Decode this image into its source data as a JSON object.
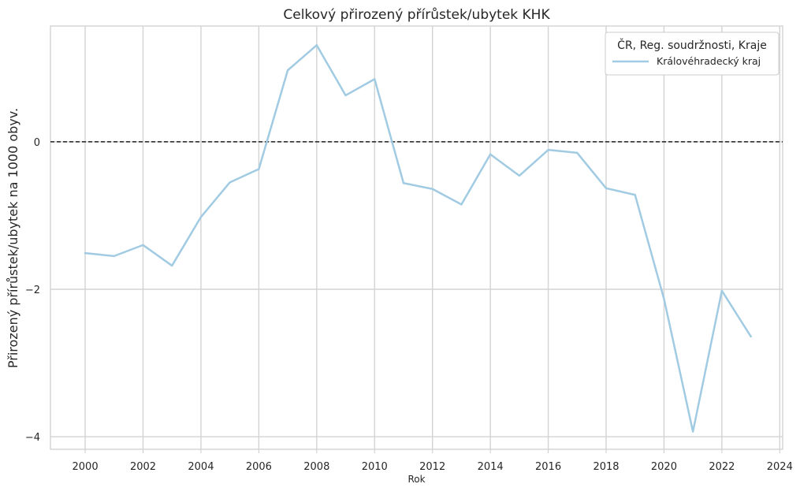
{
  "chart_data": {
    "type": "line",
    "title": "Celkový přirozený přírůstek/ubytek KHK",
    "xlabel": "Rok",
    "ylabel": "Přirozený přírůstek/ubytek na 1000 obyv.",
    "x": [
      2000,
      2001,
      2002,
      2003,
      2004,
      2005,
      2006,
      2007,
      2008,
      2009,
      2010,
      2011,
      2012,
      2013,
      2014,
      2015,
      2016,
      2017,
      2018,
      2019,
      2020,
      2021,
      2022,
      2023
    ],
    "series": [
      {
        "name": "Královéhradecký kraj",
        "color": "#a1cbe2",
        "values": [
          -1.51,
          -1.55,
          -1.4,
          -1.68,
          -1.02,
          -0.55,
          -0.37,
          0.97,
          1.31,
          0.63,
          0.85,
          -0.56,
          -0.64,
          -0.85,
          -0.17,
          -0.46,
          -0.11,
          -0.15,
          -0.63,
          -0.72,
          -2.13,
          -3.93,
          -2.02,
          -2.64
        ]
      }
    ],
    "xticks": [
      "2000",
      "2002",
      "2004",
      "2006",
      "2008",
      "2010",
      "2012",
      "2014",
      "2016",
      "2018",
      "2020",
      "2022",
      "2024"
    ],
    "yticks": [
      "0",
      "−2",
      "−4"
    ],
    "xlim": [
      1998.8,
      2024.1
    ],
    "ylim": [
      -4.17,
      1.57
    ],
    "grid": true,
    "reference_line": {
      "y": 0,
      "style": "dashed",
      "color": "#222222"
    },
    "legend": {
      "title": "ČR, Reg. soudržnosti, Kraje",
      "position": "top-right"
    }
  }
}
